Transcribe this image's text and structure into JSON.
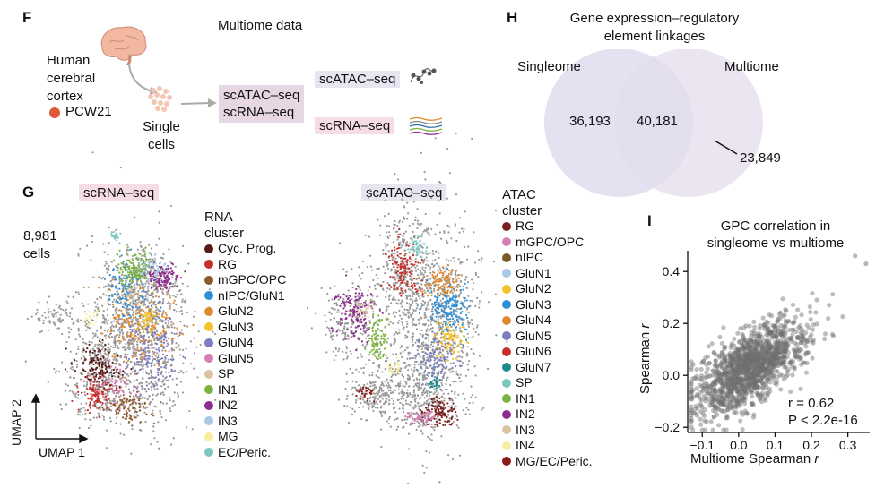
{
  "panelF": {
    "letter": "F",
    "title": "Multiome data",
    "tissue_lines": [
      "Human",
      "cerebral",
      "cortex"
    ],
    "sample": "PCW21",
    "sample_color": "#e0583a",
    "single_cells": [
      "Single",
      "cells"
    ],
    "assay_lines": [
      "scATAC–seq",
      "scRNA–seq"
    ],
    "atac_label": "scATAC–seq",
    "rna_label": "scRNA–seq"
  },
  "panelH": {
    "letter": "H",
    "title_lines": [
      "Gene expression–regulatory",
      "element linkages"
    ],
    "left_set": "Singleome",
    "right_set": "Multiome",
    "left_only": "36,193",
    "overlap": "40,181",
    "right_only": "23,849"
  },
  "panelG": {
    "letter": "G",
    "rna_title": "scRNA–seq",
    "atac_title": "scATAC–seq",
    "cell_count_lines": [
      "8,981",
      "cells"
    ],
    "axis_y": "UMAP 2",
    "axis_x": "UMAP 1",
    "rna_legend_title": [
      "RNA",
      "cluster"
    ],
    "rna_clusters": [
      {
        "name": "Cyc. Prog.",
        "color": "#5a1a1a"
      },
      {
        "name": "RG",
        "color": "#c62f2a"
      },
      {
        "name": "mGPC/OPC",
        "color": "#8a5a2b"
      },
      {
        "name": "nIPC/GluN1",
        "color": "#2f8fd6"
      },
      {
        "name": "GluN2",
        "color": "#e08a2e"
      },
      {
        "name": "GluN3",
        "color": "#f2c32e"
      },
      {
        "name": "GluN4",
        "color": "#7b7fbf"
      },
      {
        "name": "GluN5",
        "color": "#d27fb2"
      },
      {
        "name": "SP",
        "color": "#d9c3a1"
      },
      {
        "name": "IN1",
        "color": "#7cb342"
      },
      {
        "name": "IN2",
        "color": "#8e2c8e"
      },
      {
        "name": "IN3",
        "color": "#a9c8e6"
      },
      {
        "name": "MG",
        "color": "#f7eca0"
      },
      {
        "name": "EC/Peric.",
        "color": "#7cc8c0"
      }
    ],
    "atac_legend_title": [
      "ATAC",
      "cluster"
    ],
    "atac_clusters": [
      {
        "name": "RG",
        "color": "#7a1f1f"
      },
      {
        "name": "mGPC/OPC",
        "color": "#d27fb2"
      },
      {
        "name": "nIPC",
        "color": "#7a5a2b"
      },
      {
        "name": "GluN1",
        "color": "#a9c8e6"
      },
      {
        "name": "GluN2",
        "color": "#f2c32e"
      },
      {
        "name": "GluN3",
        "color": "#2f8fd6"
      },
      {
        "name": "GluN4",
        "color": "#e08a2e"
      },
      {
        "name": "GluN5",
        "color": "#7b7fbf"
      },
      {
        "name": "GluN6",
        "color": "#c62f2a"
      },
      {
        "name": "GluN7",
        "color": "#1f8a8a"
      },
      {
        "name": "SP",
        "color": "#7cc8c0"
      },
      {
        "name": "IN1",
        "color": "#7cb342"
      },
      {
        "name": "IN2",
        "color": "#8e2c8e"
      },
      {
        "name": "IN3",
        "color": "#d9c3a1"
      },
      {
        "name": "IN4",
        "color": "#f7eca0"
      },
      {
        "name": "MG/EC/Peric.",
        "color": "#8a1c1c"
      }
    ]
  },
  "panelI": {
    "letter": "I",
    "title_lines": [
      "GPC correlation in",
      "singleome vs multiome"
    ],
    "stat_r": "r = 0.62",
    "stat_p": "P < 2.2e-16",
    "xlabel_text": "Multiome Spearman ",
    "ylabel_text": "Spearman ",
    "label_var": "r"
  },
  "chart_data": {
    "type": "scatter",
    "title": "GPC correlation in singleome vs multiome",
    "xlabel": "Multiome Spearman r",
    "ylabel": "Spearman r",
    "x_ticks": [
      "−0.1",
      "0.0",
      "0.1",
      "0.2",
      "0.3"
    ],
    "y_ticks": [
      "−0.2",
      "0.0",
      "0.2",
      "0.4"
    ],
    "x_tick_values": [
      -0.1,
      0.0,
      0.1,
      0.2,
      0.3
    ],
    "y_tick_values": [
      -0.2,
      0.0,
      0.2,
      0.4
    ],
    "xlim": [
      -0.14,
      0.36
    ],
    "ylim": [
      -0.22,
      0.48
    ],
    "correlation": 0.62,
    "n_points": 1400,
    "x_mean": 0.03,
    "x_sd": 0.07,
    "y_mean": 0.03,
    "y_sd": 0.09,
    "point_color": "#6e6e6e",
    "notable_points": [
      {
        "x": 0.32,
        "y": 0.46
      },
      {
        "x": 0.35,
        "y": 0.43
      },
      {
        "x": -0.12,
        "y": -0.01
      }
    ]
  }
}
